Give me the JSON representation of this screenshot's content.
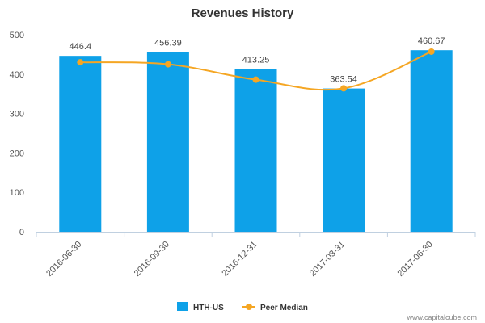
{
  "chart_data": {
    "type": "bar",
    "title": "Revenues History",
    "xlabel": "",
    "ylabel": "",
    "categories": [
      "2016-06-30",
      "2016-09-30",
      "2016-12-31",
      "2017-03-31",
      "2017-06-30"
    ],
    "series": [
      {
        "name": "HTH-US",
        "type": "bar",
        "color": "#0EA1E8",
        "values": [
          446.4,
          456.39,
          413.25,
          363.54,
          460.67
        ],
        "data_labels": [
          "446.4",
          "456.39",
          "413.25",
          "363.54",
          "460.67"
        ]
      },
      {
        "name": "Peer Median",
        "type": "line",
        "color": "#F5A623",
        "values": [
          430,
          425,
          386,
          364,
          457
        ]
      }
    ],
    "ylim": [
      0,
      500
    ],
    "yticks": [
      0,
      100,
      200,
      300,
      400,
      500
    ],
    "grid": false,
    "legend_position": "bottom"
  },
  "credit": "www.capitalcube.com"
}
